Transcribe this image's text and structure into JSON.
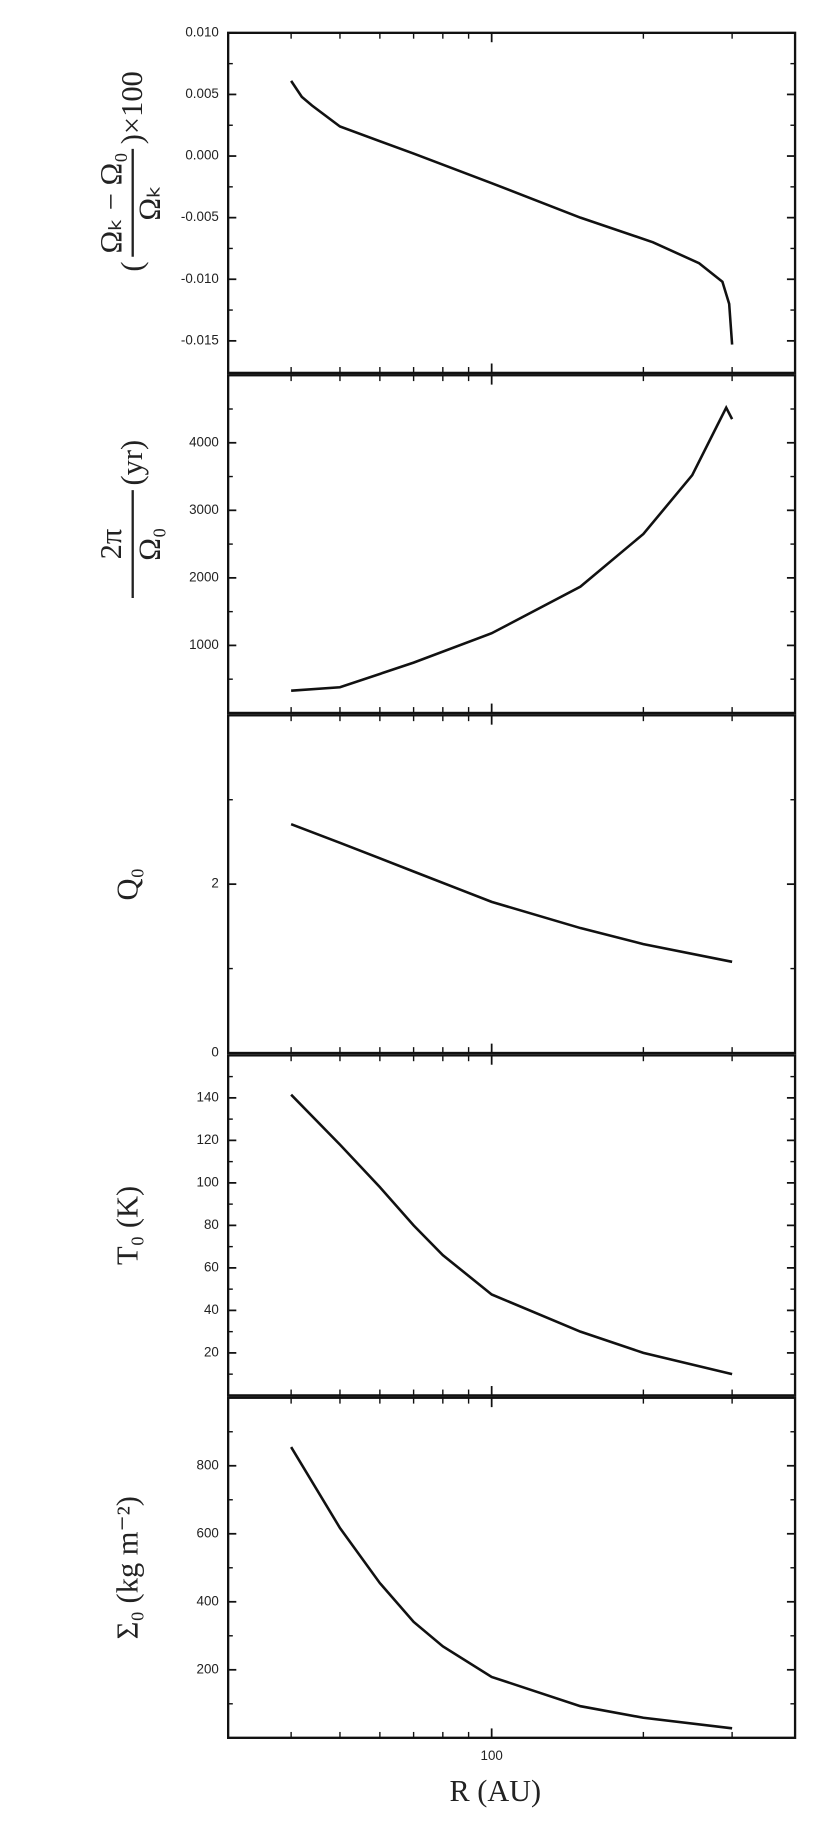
{
  "chart_data": [
    {
      "type": "line",
      "xscale": "log",
      "xlim": [
        30,
        400
      ],
      "xticks": [
        100
      ],
      "show_xtick_labels": false,
      "xminorticks": [
        40,
        50,
        60,
        70,
        80,
        90,
        200,
        300
      ],
      "ylabel": {
        "prefix": "(",
        "numerator": "Ωₖ − Ω₀",
        "denominator": "Ωₖ",
        "suffix": ")×100"
      },
      "ylim": [
        -0.0176,
        0.01
      ],
      "yticks": [
        {
          "value": 0.01,
          "label": "0.010"
        },
        {
          "value": 0.005,
          "label": "0.005"
        },
        {
          "value": 0,
          "label": "0.000"
        },
        {
          "value": -0.005,
          "label": "-0.005"
        },
        {
          "value": -0.01,
          "label": "-0.010"
        },
        {
          "value": -0.015,
          "label": "-0.015"
        }
      ],
      "yminorticks": [
        0.0075,
        0.0025,
        -0.0025,
        -0.0075,
        -0.0125
      ],
      "color": "#111111",
      "x": [
        40,
        42,
        44,
        50,
        70,
        100,
        150,
        209,
        258,
        287,
        296,
        300
      ],
      "values": [
        0.0061,
        0.0048,
        0.0041,
        0.0024,
        0.0002,
        -0.0022,
        -0.005,
        -0.007,
        -0.0087,
        -0.0102,
        -0.012,
        -0.0153
      ]
    },
    {
      "type": "line",
      "xscale": "log",
      "xlim": [
        30,
        400
      ],
      "xticks": [
        100
      ],
      "show_xtick_labels": false,
      "xminorticks": [
        40,
        50,
        60,
        70,
        80,
        90,
        200,
        300
      ],
      "ylabel": {
        "numerator": "2π",
        "denominator": "Ω₀",
        "suffix": "(yr)"
      },
      "ylim": [
        0,
        5000
      ],
      "yticks": [
        1000,
        2000,
        3000,
        4000
      ],
      "yminorticks": [
        500,
        1500,
        2500,
        3500,
        4500
      ],
      "color": "#111111",
      "x": [
        40,
        50,
        70,
        100,
        150,
        200,
        250,
        280,
        292,
        300
      ],
      "values": [
        330,
        380,
        745,
        1180,
        1870,
        2650,
        3520,
        4250,
        4520,
        4350
      ]
    },
    {
      "type": "line",
      "xscale": "log",
      "xlim": [
        30,
        400
      ],
      "xticks": [
        100
      ],
      "show_xtick_labels": false,
      "xminorticks": [
        40,
        50,
        60,
        70,
        80,
        90,
        200,
        300
      ],
      "ylabel": {
        "text": "Q₀"
      },
      "ylim": [
        0,
        4
      ],
      "yticks": [
        0,
        2
      ],
      "yminorticks": [
        1,
        3
      ],
      "color": "#111111",
      "x": [
        40,
        50,
        70,
        100,
        150,
        200,
        300
      ],
      "values": [
        2.71,
        2.49,
        2.15,
        1.79,
        1.48,
        1.29,
        1.08
      ]
    },
    {
      "type": "line",
      "xscale": "log",
      "xlim": [
        30,
        400
      ],
      "xticks": [
        100
      ],
      "show_xtick_labels": false,
      "xminorticks": [
        40,
        50,
        60,
        70,
        80,
        90,
        200,
        300
      ],
      "ylabel": {
        "text": "T₀ (K)"
      },
      "ylim": [
        0,
        160
      ],
      "yticks": [
        20,
        40,
        60,
        80,
        100,
        120,
        140
      ],
      "yminorticks": [
        10,
        30,
        50,
        70,
        90,
        110,
        130,
        150
      ],
      "color": "#111111",
      "x": [
        40,
        50,
        60,
        70,
        80,
        100,
        150,
        200,
        300
      ],
      "values": [
        141.5,
        118,
        98,
        80,
        66,
        47.5,
        30,
        20,
        10
      ]
    },
    {
      "type": "line",
      "xscale": "log",
      "xlim": [
        30,
        400
      ],
      "xticks": [
        100
      ],
      "show_xtick_labels": true,
      "xminorticks": [
        40,
        50,
        60,
        70,
        80,
        90,
        200,
        300
      ],
      "xlabel": "R (AU)",
      "ylabel": {
        "text": "Σ₀ (kg m⁻²)"
      },
      "ylim": [
        0,
        1000
      ],
      "yticks": [
        200,
        400,
        600,
        800
      ],
      "yminorticks": [
        100,
        300,
        500,
        700,
        900
      ],
      "color": "#111111",
      "x": [
        40,
        50,
        60,
        70,
        80,
        100,
        150,
        200,
        300
      ],
      "values": [
        855,
        617,
        455,
        341,
        269,
        179,
        93,
        59,
        28
      ]
    }
  ]
}
